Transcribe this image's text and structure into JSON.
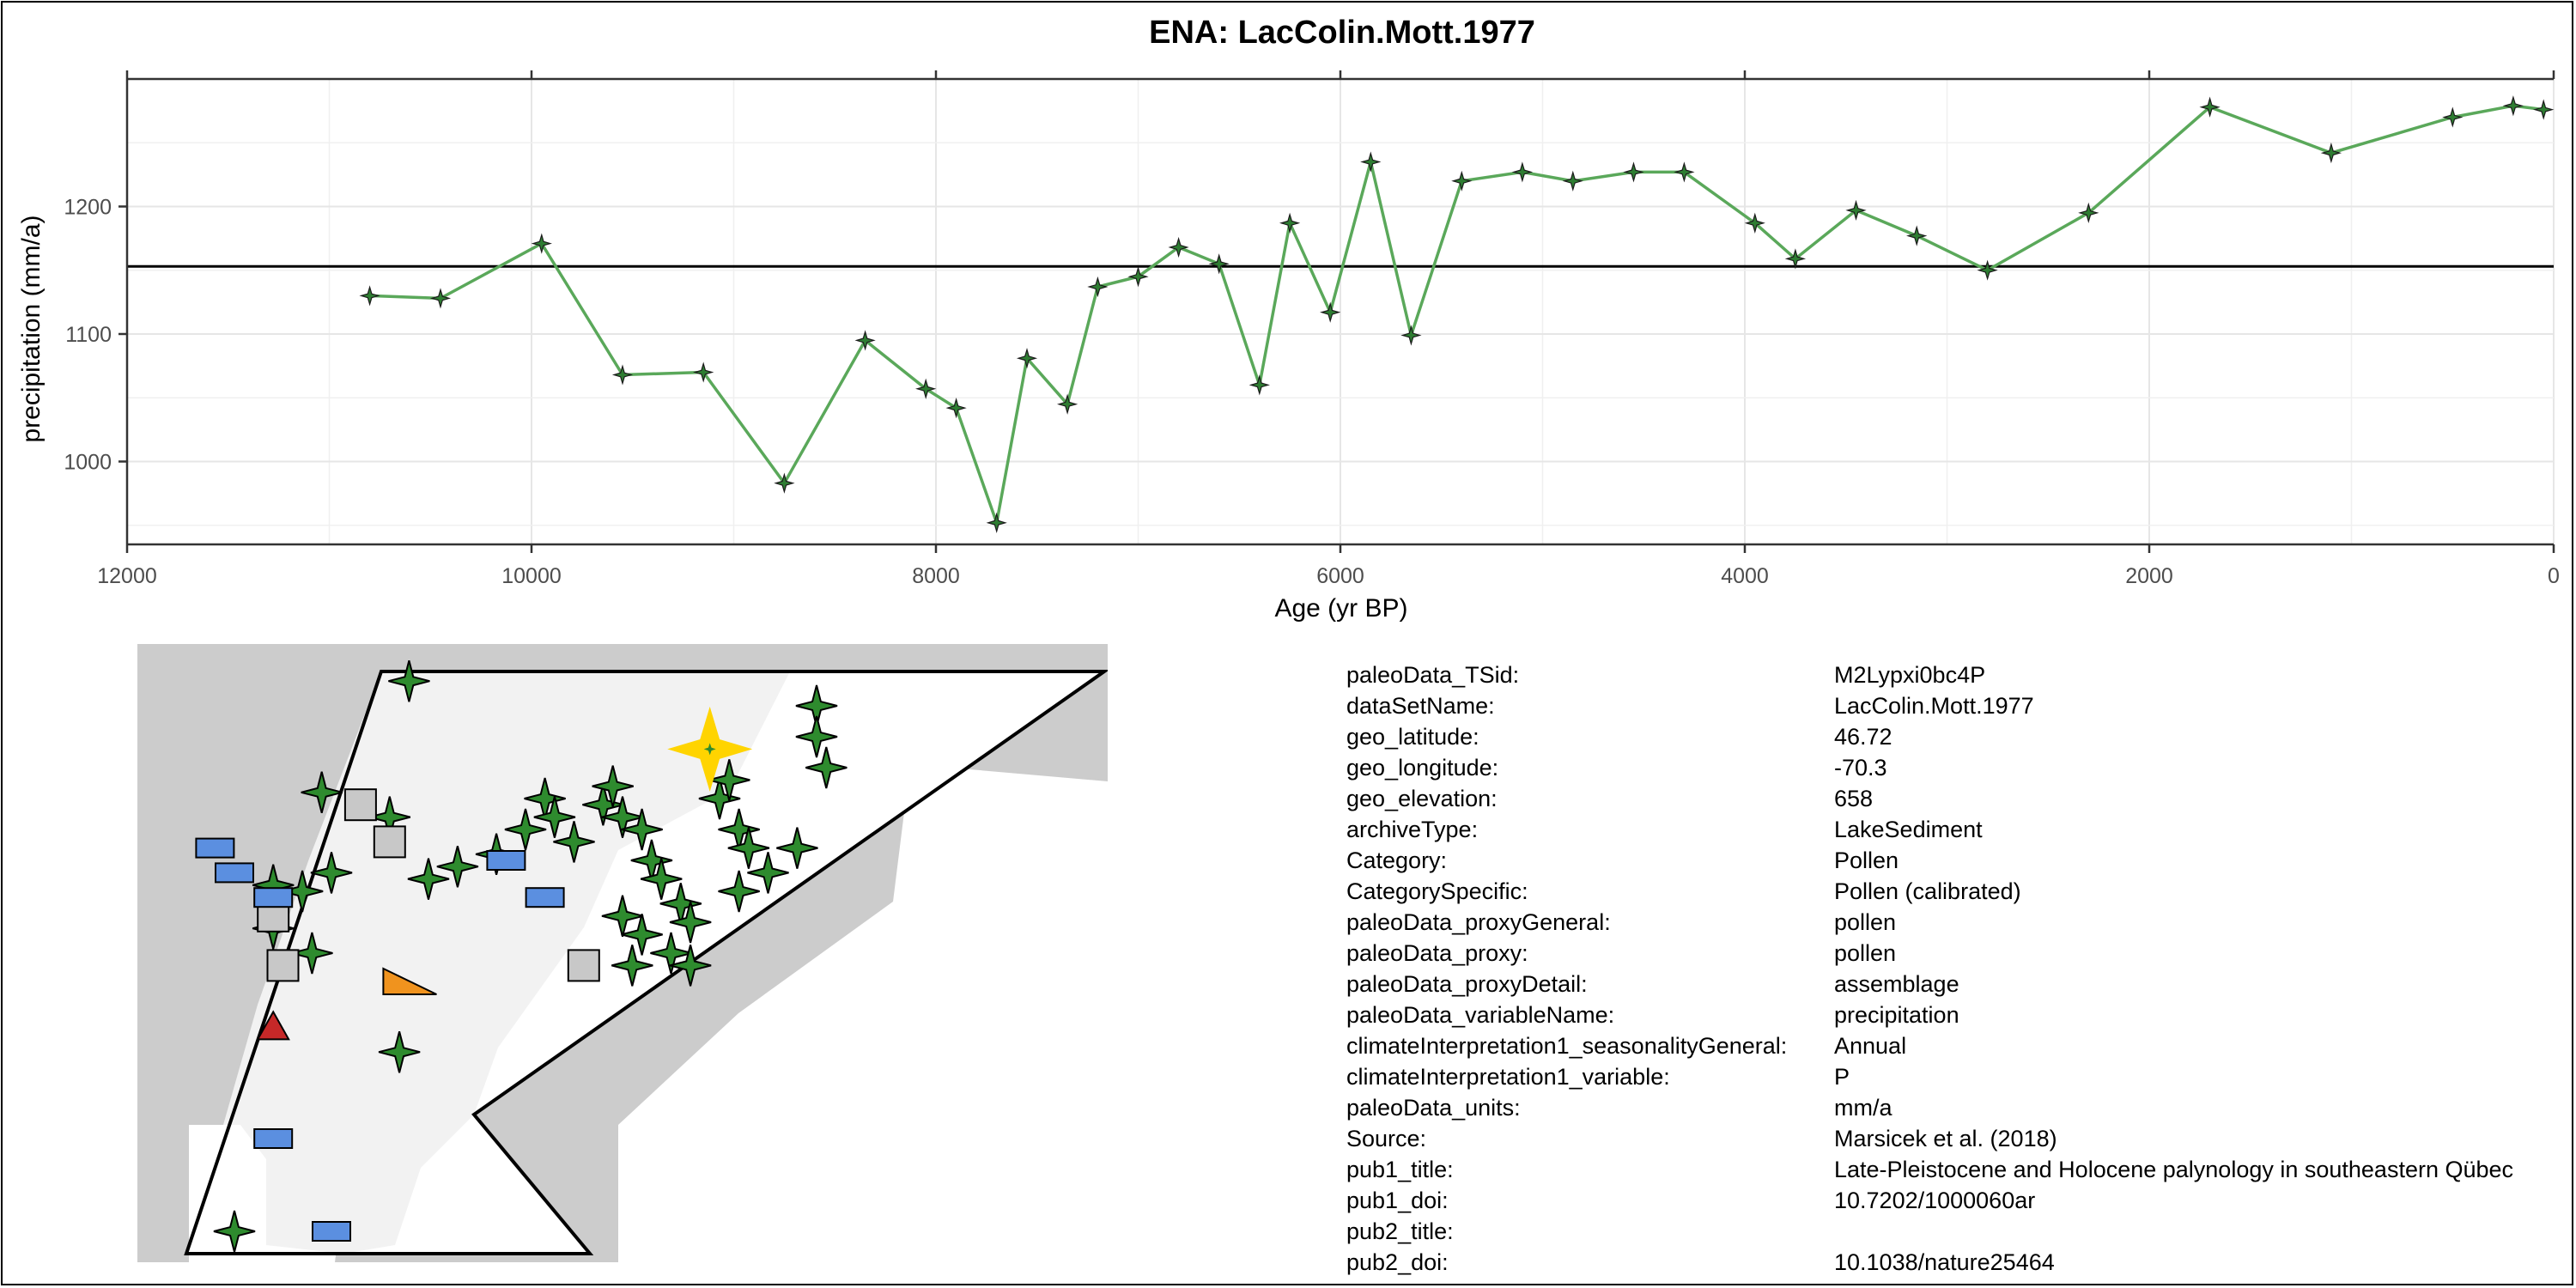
{
  "chart_data": {
    "type": "line",
    "title": "ENA: LacColin.Mott.1977",
    "xlabel": "Age (yr BP)",
    "ylabel": "precipitation (mm/a)",
    "xlim": [
      12000,
      0
    ],
    "x_reversed": true,
    "ylim": [
      935,
      1300
    ],
    "x_ticks": [
      12000,
      10000,
      8000,
      6000,
      4000,
      2000,
      0
    ],
    "y_ticks": [
      1000,
      1100,
      1200
    ],
    "x_tick_labels": [
      "12000",
      "10000",
      "8000",
      "6000",
      "4000",
      "2000",
      "0"
    ],
    "y_tick_labels": [
      "1000",
      "1100",
      "1200"
    ],
    "reference_line_y": 1153,
    "grid": true,
    "series": [
      {
        "color": "#5aa85a",
        "marker_color": "#2e7d32",
        "x": [
          10800,
          10450,
          9950,
          9550,
          9150,
          8750,
          8350,
          8050,
          7900,
          7700,
          7550,
          7350,
          7200,
          7000,
          6800,
          6600,
          6400,
          6250,
          6050,
          5850,
          5650,
          5400,
          5100,
          4850,
          4550,
          4300,
          3950,
          3750,
          3450,
          3150,
          2800,
          2300,
          1700,
          1100,
          500,
          200,
          50
        ],
        "y": [
          1130,
          1128,
          1171,
          1068,
          1070,
          983,
          1095,
          1057,
          1042,
          952,
          1081,
          1045,
          1137,
          1145,
          1168,
          1155,
          1060,
          1187,
          1117,
          1235,
          1099,
          1220,
          1227,
          1220,
          1227,
          1227,
          1187,
          1159,
          1197,
          1177,
          1150,
          1195,
          1278,
          1242,
          1270,
          1279,
          1276
        ]
      }
    ]
  },
  "map": {
    "land_color": "#cccccc",
    "region_color": "#ffffff",
    "markers": {
      "stars": [
        [
          0.28,
          0.06
        ],
        [
          0.19,
          0.24
        ],
        [
          0.26,
          0.28
        ],
        [
          0.2,
          0.37
        ],
        [
          0.17,
          0.4
        ],
        [
          0.14,
          0.39
        ],
        [
          0.14,
          0.46
        ],
        [
          0.18,
          0.5
        ],
        [
          0.3,
          0.38
        ],
        [
          0.33,
          0.36
        ],
        [
          0.37,
          0.34
        ],
        [
          0.4,
          0.3
        ],
        [
          0.42,
          0.25
        ],
        [
          0.43,
          0.28
        ],
        [
          0.45,
          0.32
        ],
        [
          0.48,
          0.26
        ],
        [
          0.49,
          0.23
        ],
        [
          0.5,
          0.28
        ],
        [
          0.52,
          0.3
        ],
        [
          0.53,
          0.35
        ],
        [
          0.54,
          0.38
        ],
        [
          0.56,
          0.42
        ],
        [
          0.57,
          0.45
        ],
        [
          0.55,
          0.5
        ],
        [
          0.57,
          0.52
        ],
        [
          0.52,
          0.47
        ],
        [
          0.5,
          0.44
        ],
        [
          0.51,
          0.52
        ],
        [
          0.6,
          0.25
        ],
        [
          0.61,
          0.22
        ],
        [
          0.62,
          0.3
        ],
        [
          0.63,
          0.33
        ],
        [
          0.65,
          0.37
        ],
        [
          0.62,
          0.4
        ],
        [
          0.68,
          0.33
        ],
        [
          0.7,
          0.1
        ],
        [
          0.7,
          0.15
        ],
        [
          0.71,
          0.2
        ],
        [
          0.27,
          0.66
        ],
        [
          0.1,
          0.95
        ]
      ],
      "target": [
        0.59,
        0.17
      ],
      "grey_squares": [
        [
          0.23,
          0.26
        ],
        [
          0.26,
          0.32
        ],
        [
          0.14,
          0.44
        ],
        [
          0.15,
          0.52
        ],
        [
          0.46,
          0.52
        ]
      ],
      "blue_rects": [
        [
          0.08,
          0.33
        ],
        [
          0.1,
          0.37
        ],
        [
          0.14,
          0.41
        ],
        [
          0.38,
          0.35
        ],
        [
          0.42,
          0.41
        ],
        [
          0.14,
          0.8
        ],
        [
          0.2,
          0.95
        ]
      ],
      "red_triangle": [
        0.14,
        0.62
      ],
      "orange_triangle": [
        0.28,
        0.55
      ]
    }
  },
  "metadata": [
    {
      "key": "paleoData_TSid:",
      "value": "M2Lypxi0bc4P"
    },
    {
      "key": "dataSetName:",
      "value": "LacColin.Mott.1977"
    },
    {
      "key": "geo_latitude:",
      "value": "46.72"
    },
    {
      "key": "geo_longitude:",
      "value": "-70.3"
    },
    {
      "key": "geo_elevation:",
      "value": "658"
    },
    {
      "key": "archiveType:",
      "value": "LakeSediment"
    },
    {
      "key": "Category:",
      "value": "Pollen"
    },
    {
      "key": "CategorySpecific:",
      "value": "Pollen (calibrated)"
    },
    {
      "key": "paleoData_proxyGeneral:",
      "value": "pollen"
    },
    {
      "key": "paleoData_proxy:",
      "value": "pollen"
    },
    {
      "key": "paleoData_proxyDetail:",
      "value": "assemblage"
    },
    {
      "key": "paleoData_variableName:",
      "value": "precipitation"
    },
    {
      "key": "climateInterpretation1_seasonalityGeneral:",
      "value": "Annual"
    },
    {
      "key": "climateInterpretation1_variable:",
      "value": "P"
    },
    {
      "key": "paleoData_units:",
      "value": "mm/a"
    },
    {
      "key": "Source:",
      "value": "Marsicek et al. (2018)"
    },
    {
      "key": "pub1_title:",
      "value": "Late-Pleistocene and Holocene palynology in southeastern Qübec"
    },
    {
      "key": "pub1_doi:",
      "value": "10.7202/1000060ar"
    },
    {
      "key": "pub2_title:",
      "value": ""
    },
    {
      "key": "pub2_doi:",
      "value": "10.1038/nature25464"
    }
  ]
}
